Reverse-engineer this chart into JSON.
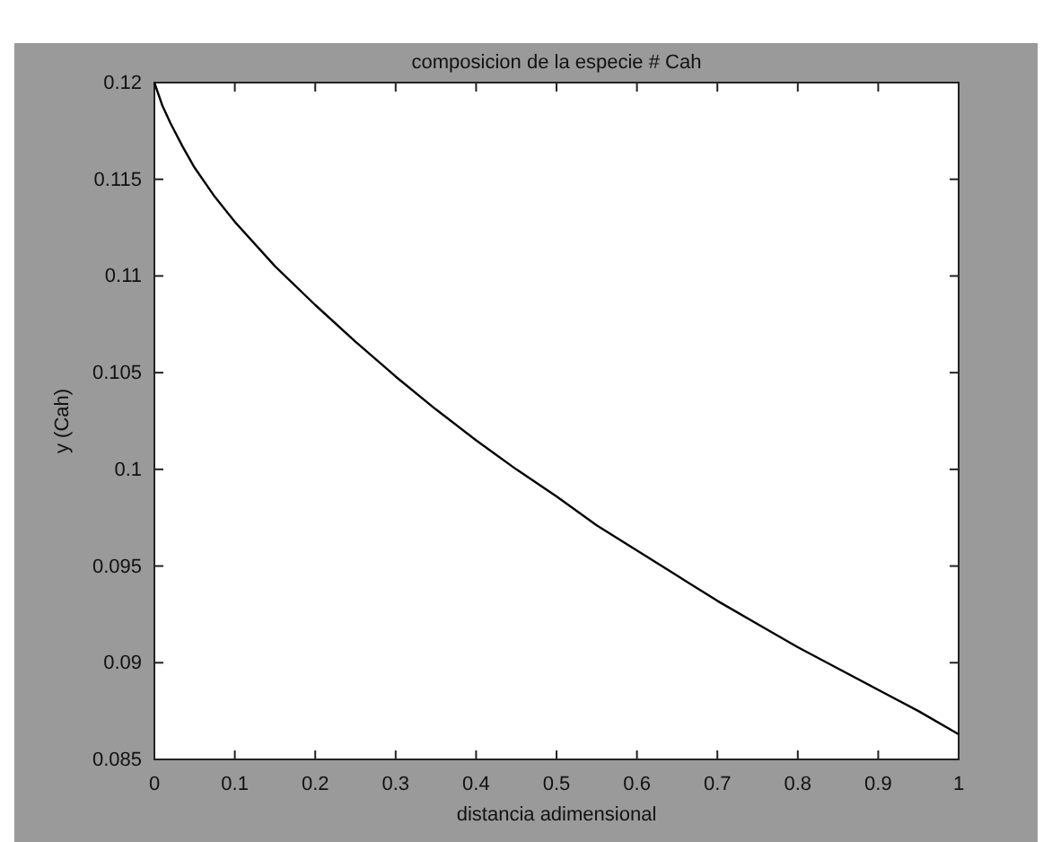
{
  "chart_data": {
    "type": "line",
    "title": "composicion de la  especie # Cah",
    "xlabel": "distancia adimensional",
    "ylabel": "y (Cah)",
    "x": [
      0,
      0.01,
      0.02,
      0.035,
      0.05,
      0.075,
      0.1,
      0.15,
      0.2,
      0.25,
      0.3,
      0.35,
      0.4,
      0.45,
      0.5,
      0.55,
      0.6,
      0.65,
      0.7,
      0.75,
      0.8,
      0.85,
      0.9,
      0.95,
      1
    ],
    "series": [
      {
        "color": "#000000",
        "values": [
          0.12,
          0.1188,
          0.1179,
          0.1167,
          0.1156,
          0.1141,
          0.1128,
          0.1105,
          0.1085,
          0.1066,
          0.1048,
          0.1031,
          0.1015,
          0.1,
          0.0986,
          0.0971,
          0.0958,
          0.0945,
          0.0932,
          0.092,
          0.0908,
          0.0897,
          0.0886,
          0.0875,
          0.0863
        ]
      }
    ],
    "xlim": [
      0,
      1
    ],
    "xticks": [
      0,
      0.1,
      0.2,
      0.3,
      0.4,
      0.5,
      0.6,
      0.7,
      0.8,
      0.9,
      1
    ],
    "ylim": [
      0.085,
      0.12
    ],
    "yticks": [
      0.085,
      0.09,
      0.095,
      0.1,
      0.105,
      0.11,
      0.115,
      0.12
    ],
    "grid": false,
    "legend": false,
    "marker": "none",
    "line_style": "solid"
  }
}
